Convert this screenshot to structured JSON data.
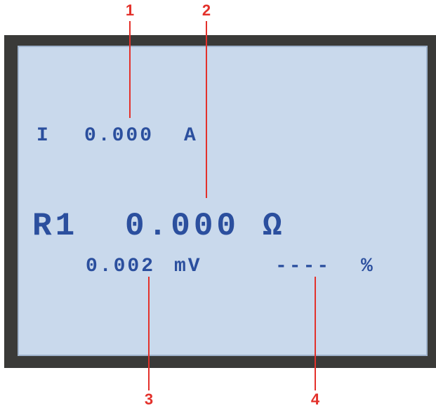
{
  "callouts": [
    "1",
    "2",
    "3",
    "4"
  ],
  "display": {
    "current": {
      "label": "I",
      "value": "0.000",
      "unit": "A"
    },
    "resistance": {
      "label": "R1",
      "value": "0.000",
      "unit": "Ω"
    },
    "voltage": {
      "value": "0.002",
      "unit": "mV"
    },
    "percent": {
      "value": "----",
      "unit": "%"
    }
  }
}
